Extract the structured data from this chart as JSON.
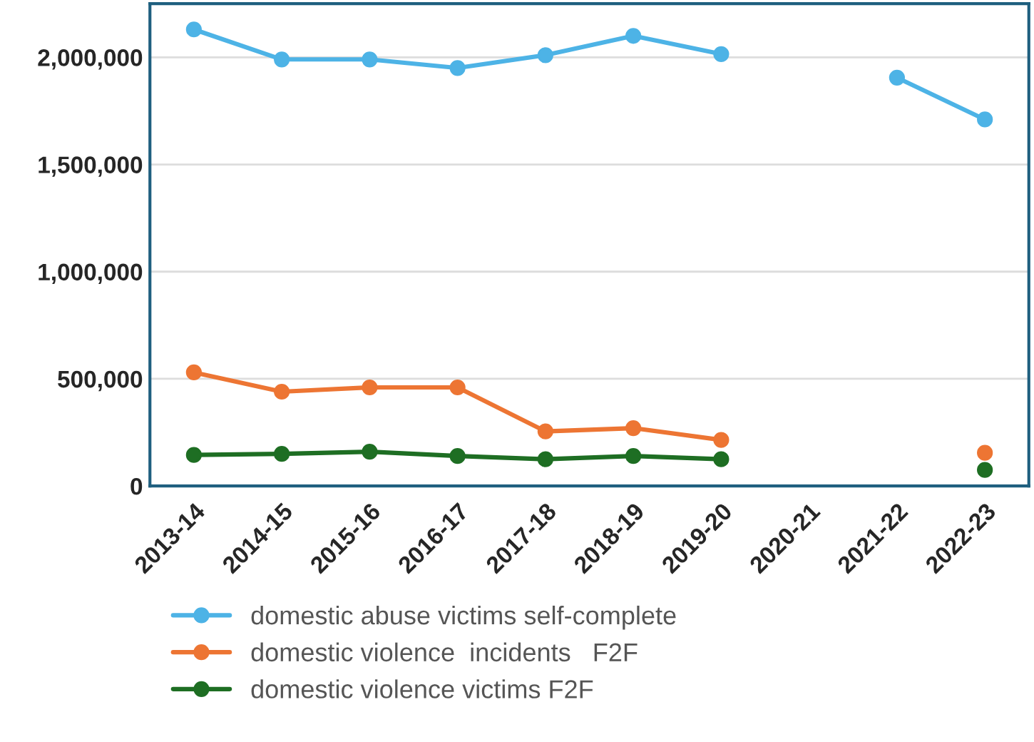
{
  "chart_data": {
    "type": "line",
    "categories": [
      "2013-14",
      "2014-15",
      "2015-16",
      "2016-17",
      "2017-18",
      "2018-19",
      "2019-20",
      "2020-21",
      "2021-22",
      "2022-23"
    ],
    "series": [
      {
        "name": "domestic abuse victims self-complete",
        "color": "#4db3e6",
        "values": [
          2130000,
          1990000,
          1990000,
          1950000,
          2010000,
          2100000,
          2015000,
          null,
          1905000,
          1710000
        ]
      },
      {
        "name": "domestic violence  incidents   F2F",
        "color": "#ed7533",
        "values": [
          530000,
          440000,
          460000,
          460000,
          255000,
          270000,
          215000,
          null,
          null,
          155000
        ]
      },
      {
        "name": "domestic violence victims F2F",
        "color": "#1e6e23",
        "values": [
          145000,
          150000,
          160000,
          140000,
          125000,
          140000,
          125000,
          null,
          null,
          75000
        ]
      }
    ],
    "ylim": [
      0,
      2250000
    ],
    "yticks": [
      {
        "value": 0,
        "label": "0"
      },
      {
        "value": 500000,
        "label": "500,000"
      },
      {
        "value": 1000000,
        "label": "1,000,000"
      },
      {
        "value": 1500000,
        "label": "1,500,000"
      },
      {
        "value": 2000000,
        "label": "2,000,000"
      }
    ],
    "grid": "y",
    "legend": "bottom",
    "marker": "circle",
    "line_style": "solid"
  }
}
